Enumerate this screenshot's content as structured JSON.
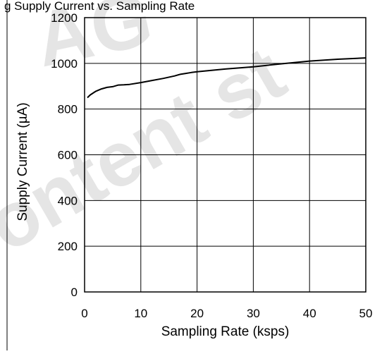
{
  "caption": "g    Supply Current vs. Sampling Rate",
  "watermark": {
    "line1": "AG",
    "line2": "ontent st"
  },
  "chart_data": {
    "type": "line",
    "title": "",
    "xlabel": "Sampling Rate (ksps)",
    "ylabel": "Supply Current (µA)",
    "xlim": [
      0,
      50
    ],
    "ylim": [
      0,
      1200
    ],
    "xticks": [
      0,
      10,
      20,
      30,
      40,
      50
    ],
    "yticks": [
      0,
      200,
      400,
      600,
      800,
      1000,
      1200
    ],
    "xtick_labels": [
      "0",
      "10",
      "20",
      "30",
      "40",
      "50"
    ],
    "ytick_labels": [
      "0",
      "200",
      "400",
      "600",
      "800",
      "1000",
      "1200"
    ],
    "grid": true,
    "legend": "none",
    "series": [
      {
        "color": "#000000",
        "x": [
          0.5,
          1,
          2,
          3,
          4,
          5,
          6,
          7,
          8,
          10,
          12,
          14,
          16,
          17,
          18,
          19,
          20,
          25,
          30,
          35,
          40,
          45,
          50
        ],
        "y": [
          850,
          862,
          878,
          888,
          895,
          898,
          905,
          906,
          908,
          916,
          925,
          934,
          945,
          952,
          956,
          960,
          963,
          975,
          985,
          998,
          1010,
          1018,
          1024
        ]
      }
    ]
  }
}
